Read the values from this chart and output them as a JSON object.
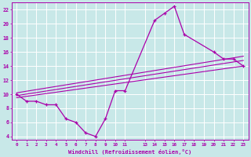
{
  "bg_color": "#c8e8e8",
  "grid_color": "#aadddd",
  "line_color": "#aa00aa",
  "xlabel": "Windchill (Refroidissement éolien,°C)",
  "xlim": [
    -0.5,
    23.5
  ],
  "ylim": [
    3.5,
    23
  ],
  "yticks": [
    4,
    6,
    8,
    10,
    12,
    14,
    16,
    18,
    20,
    22
  ],
  "xticks": [
    0,
    1,
    2,
    3,
    4,
    5,
    6,
    7,
    8,
    9,
    10,
    11,
    13,
    14,
    15,
    16,
    17,
    18,
    19,
    20,
    21,
    22,
    23
  ],
  "zigzag_x": [
    0,
    1,
    2,
    3,
    4,
    5,
    6,
    7,
    8,
    9,
    10,
    11,
    14,
    15,
    16,
    17,
    20,
    21,
    22,
    23
  ],
  "zigzag_y": [
    10,
    9,
    9,
    8.5,
    8.5,
    6.5,
    6,
    4.5,
    4,
    6.5,
    10.5,
    10.5,
    20.5,
    21.5,
    22.5,
    18.5,
    16,
    15,
    15,
    14
  ],
  "line1_x": [
    0,
    23
  ],
  "line1_y": [
    9.5,
    14.0
  ],
  "line2_x": [
    0,
    23
  ],
  "line2_y": [
    9.8,
    14.8
  ],
  "line3_x": [
    0,
    23
  ],
  "line3_y": [
    10.2,
    15.4
  ]
}
